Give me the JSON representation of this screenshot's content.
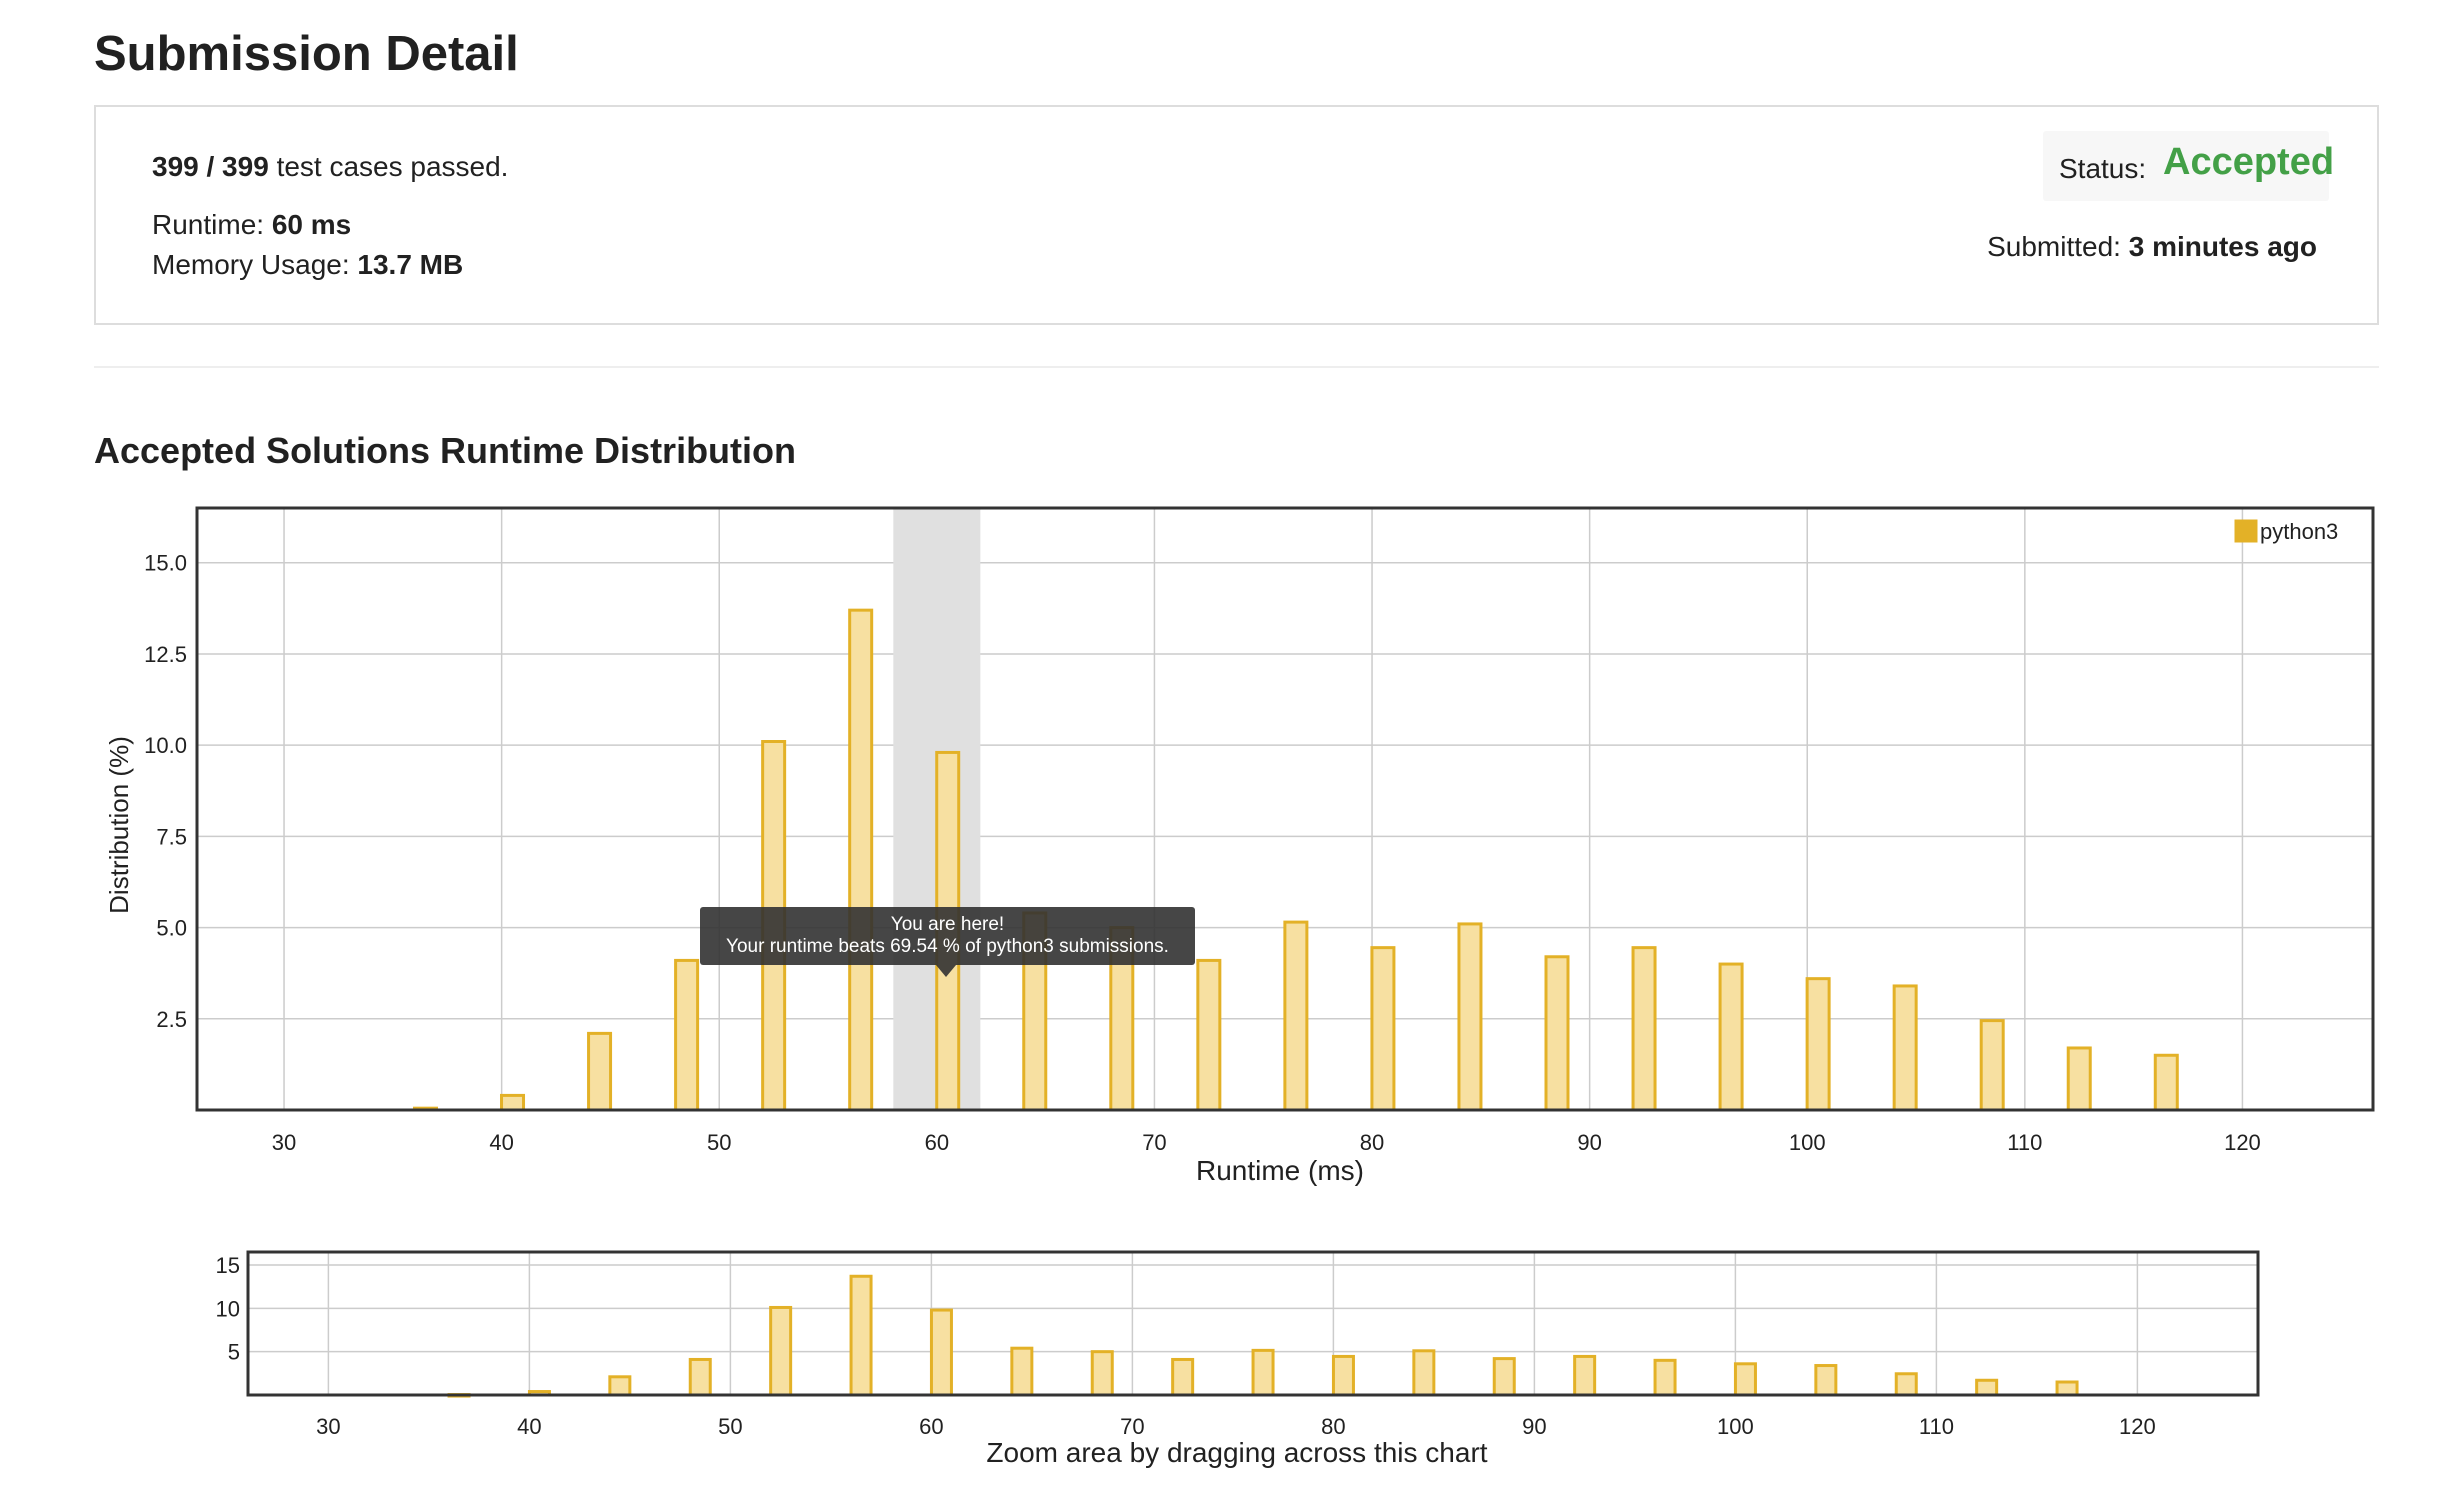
{
  "header": {
    "title": "Submission Detail"
  },
  "summary": {
    "test_cases": "399 / 399",
    "test_cases_suffix": "test cases passed.",
    "runtime_label": "Runtime:",
    "runtime_value": "60 ms",
    "memory_label": "Memory Usage:",
    "memory_value": "13.7 MB",
    "status_label": "Status:",
    "status_value": "Accepted",
    "submitted_label": "Submitted:",
    "submitted_value": "3 minutes ago"
  },
  "colors": {
    "accepted": "#43a047",
    "bar_fill": "#f7e0a1",
    "bar_stroke": "#e3b127",
    "highlight": "#e0e0e0"
  },
  "section": {
    "title": "Accepted Solutions Runtime Distribution"
  },
  "tooltip": {
    "line1": "You are here!",
    "line2": "Your runtime beats 69.54 % of python3 submissions."
  },
  "navigator": {
    "caption": "Zoom area by dragging across this chart"
  },
  "chart_data": {
    "type": "bar",
    "title": "",
    "xlabel": "Runtime (ms)",
    "ylabel": "Distribution (%)",
    "xlim": [
      26,
      126
    ],
    "ylim": [
      0,
      16.5
    ],
    "x_ticks": [
      30,
      40,
      50,
      60,
      70,
      80,
      90,
      100,
      110,
      120
    ],
    "y_ticks": [
      2.5,
      5.0,
      7.5,
      10.0,
      12.5,
      15.0
    ],
    "y_tick_labels": [
      "2.5",
      "5.0",
      "7.5",
      "10.0",
      "12.5",
      "15.0"
    ],
    "nav_y_ticks": [
      5,
      10,
      15
    ],
    "legend": {
      "position": "top-right",
      "entries": [
        "python3"
      ]
    },
    "highlight_range": [
      58,
      62
    ],
    "grid": true,
    "series": [
      {
        "name": "python3",
        "x": [
          36.5,
          40.5,
          44.5,
          48.5,
          52.5,
          56.5,
          60.5,
          64.5,
          68.5,
          72.5,
          76.5,
          80.5,
          84.5,
          88.5,
          92.5,
          96.5,
          100.5,
          104.5,
          108.5,
          112.5,
          116.5
        ],
        "values": [
          0.05,
          0.4,
          2.1,
          4.1,
          10.1,
          13.7,
          9.8,
          5.4,
          5.0,
          4.1,
          5.15,
          4.45,
          5.1,
          4.2,
          4.45,
          4.0,
          3.6,
          3.4,
          2.45,
          1.7,
          1.5
        ]
      }
    ]
  }
}
